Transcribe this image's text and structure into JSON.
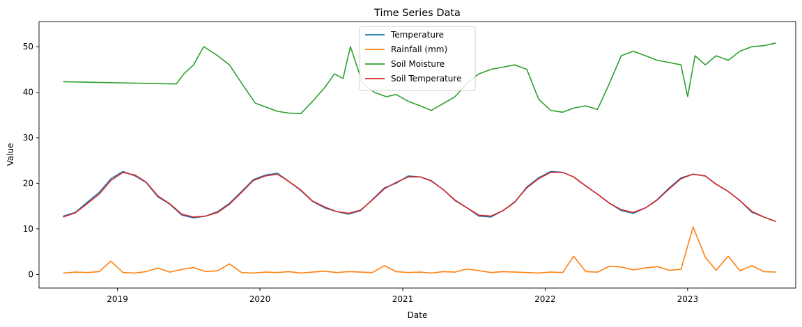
{
  "chart_data": {
    "type": "line",
    "title": "Time Series Data",
    "xlabel": "Date",
    "ylabel": "Value",
    "x_range": [
      "2018-06-14",
      "2023-10-05"
    ],
    "ylim": [
      -3.0,
      55.5
    ],
    "x_ticks": [
      "2019",
      "2020",
      "2021",
      "2022",
      "2023"
    ],
    "y_ticks": [
      0,
      10,
      20,
      30,
      40,
      50
    ],
    "grid": false,
    "legend": {
      "placement": "top-center",
      "entries": [
        "Temperature",
        "Rainfall (mm)",
        "Soil Moisture",
        "Soil Temperature"
      ]
    },
    "colors": {
      "Temperature": "#1f77b4",
      "Rainfall (mm)": "#ff7f0e",
      "Soil Moisture": "#2ca02c",
      "Soil Temperature": "#d62728"
    },
    "series": [
      {
        "name": "Temperature",
        "points": [
          [
            "2018-08-15",
            12.8
          ],
          [
            "2018-09-15",
            13.6
          ],
          [
            "2018-10-15",
            15.8
          ],
          [
            "2018-11-15",
            18.0
          ],
          [
            "2018-12-15",
            21.0
          ],
          [
            "2019-01-15",
            22.6
          ],
          [
            "2019-02-15",
            21.6
          ],
          [
            "2019-03-15",
            20.2
          ],
          [
            "2019-04-15",
            17.0
          ],
          [
            "2019-05-15",
            15.4
          ],
          [
            "2019-06-15",
            13.0
          ],
          [
            "2019-07-15",
            12.4
          ],
          [
            "2019-08-15",
            12.8
          ],
          [
            "2019-09-15",
            13.8
          ],
          [
            "2019-10-15",
            15.6
          ],
          [
            "2019-11-15",
            18.2
          ],
          [
            "2019-12-15",
            20.8
          ],
          [
            "2020-01-15",
            21.8
          ],
          [
            "2020-02-15",
            22.2
          ],
          [
            "2020-03-15",
            20.4
          ],
          [
            "2020-04-15",
            18.4
          ],
          [
            "2020-05-15",
            16.0
          ],
          [
            "2020-06-15",
            14.6
          ],
          [
            "2020-07-15",
            13.8
          ],
          [
            "2020-08-15",
            13.2
          ],
          [
            "2020-09-15",
            14.0
          ],
          [
            "2020-10-15",
            16.4
          ],
          [
            "2020-11-15",
            19.0
          ],
          [
            "2020-12-15",
            20.0
          ],
          [
            "2021-01-15",
            21.6
          ],
          [
            "2021-02-15",
            21.4
          ],
          [
            "2021-03-15",
            20.6
          ],
          [
            "2021-04-15",
            18.6
          ],
          [
            "2021-05-15",
            16.2
          ],
          [
            "2021-06-15",
            14.6
          ],
          [
            "2021-07-15",
            12.8
          ],
          [
            "2021-08-15",
            12.6
          ],
          [
            "2021-09-15",
            14.0
          ],
          [
            "2021-10-15",
            15.8
          ],
          [
            "2021-11-15",
            19.2
          ],
          [
            "2021-12-15",
            21.2
          ],
          [
            "2022-01-15",
            22.6
          ],
          [
            "2022-02-15",
            22.4
          ],
          [
            "2022-03-15",
            21.4
          ],
          [
            "2022-04-15",
            19.4
          ],
          [
            "2022-05-15",
            17.6
          ],
          [
            "2022-06-15",
            15.6
          ],
          [
            "2022-07-15",
            14.0
          ],
          [
            "2022-08-15",
            13.4
          ],
          [
            "2022-09-15",
            14.6
          ],
          [
            "2022-10-15",
            16.4
          ],
          [
            "2022-11-15",
            19.0
          ],
          [
            "2022-12-15",
            21.2
          ],
          [
            "2023-01-15",
            22.0
          ],
          [
            "2023-02-15",
            21.6
          ],
          [
            "2023-03-15",
            19.8
          ],
          [
            "2023-04-15",
            18.2
          ],
          [
            "2023-05-15",
            16.2
          ],
          [
            "2023-06-15",
            13.6
          ],
          [
            "2023-07-15",
            12.6
          ],
          [
            "2023-08-15",
            11.6
          ]
        ]
      },
      {
        "name": "Rainfall (mm)",
        "points": [
          [
            "2018-08-15",
            0.3
          ],
          [
            "2018-09-15",
            0.5
          ],
          [
            "2018-10-15",
            0.4
          ],
          [
            "2018-11-15",
            0.6
          ],
          [
            "2018-12-15",
            2.9
          ],
          [
            "2019-01-15",
            0.4
          ],
          [
            "2019-02-15",
            0.3
          ],
          [
            "2019-03-15",
            0.6
          ],
          [
            "2019-04-15",
            1.4
          ],
          [
            "2019-05-15",
            0.5
          ],
          [
            "2019-06-15",
            1.1
          ],
          [
            "2019-07-15",
            1.5
          ],
          [
            "2019-08-15",
            0.6
          ],
          [
            "2019-09-15",
            0.8
          ],
          [
            "2019-10-15",
            2.3
          ],
          [
            "2019-11-15",
            0.4
          ],
          [
            "2019-12-15",
            0.3
          ],
          [
            "2020-01-15",
            0.5
          ],
          [
            "2020-02-15",
            0.4
          ],
          [
            "2020-03-15",
            0.6
          ],
          [
            "2020-04-15",
            0.3
          ],
          [
            "2020-05-15",
            0.5
          ],
          [
            "2020-06-15",
            0.7
          ],
          [
            "2020-07-15",
            0.4
          ],
          [
            "2020-08-15",
            0.6
          ],
          [
            "2020-09-15",
            0.5
          ],
          [
            "2020-10-15",
            0.4
          ],
          [
            "2020-11-15",
            1.9
          ],
          [
            "2020-12-15",
            0.6
          ],
          [
            "2021-01-15",
            0.4
          ],
          [
            "2021-02-15",
            0.5
          ],
          [
            "2021-03-15",
            0.3
          ],
          [
            "2021-04-15",
            0.6
          ],
          [
            "2021-05-15",
            0.5
          ],
          [
            "2021-06-15",
            1.2
          ],
          [
            "2021-07-15",
            0.8
          ],
          [
            "2021-08-15",
            0.4
          ],
          [
            "2021-09-15",
            0.6
          ],
          [
            "2021-10-15",
            0.5
          ],
          [
            "2021-11-15",
            0.4
          ],
          [
            "2021-12-15",
            0.3
          ],
          [
            "2022-01-15",
            0.5
          ],
          [
            "2022-02-15",
            0.4
          ],
          [
            "2022-03-15",
            4.0
          ],
          [
            "2022-04-15",
            0.6
          ],
          [
            "2022-05-15",
            0.5
          ],
          [
            "2022-06-15",
            1.8
          ],
          [
            "2022-07-15",
            1.6
          ],
          [
            "2022-08-15",
            1.0
          ],
          [
            "2022-09-15",
            1.4
          ],
          [
            "2022-10-15",
            1.7
          ],
          [
            "2022-11-15",
            0.9
          ],
          [
            "2022-12-15",
            1.1
          ],
          [
            "2023-01-15",
            10.4
          ],
          [
            "2023-02-15",
            3.8
          ],
          [
            "2023-03-15",
            0.9
          ],
          [
            "2023-04-15",
            4.0
          ],
          [
            "2023-05-15",
            0.8
          ],
          [
            "2023-06-15",
            1.9
          ],
          [
            "2023-07-15",
            0.6
          ],
          [
            "2023-08-15",
            0.5
          ]
        ]
      },
      {
        "name": "Soil Moisture",
        "points": [
          [
            "2018-08-15",
            42.3
          ],
          [
            "2019-06-01",
            41.8
          ],
          [
            "2019-06-20",
            44.0
          ],
          [
            "2019-07-15",
            46.0
          ],
          [
            "2019-08-10",
            50.0
          ],
          [
            "2019-09-15",
            48.0
          ],
          [
            "2019-10-15",
            46.0
          ],
          [
            "2019-11-15",
            42.0
          ],
          [
            "2019-12-20",
            37.6
          ],
          [
            "2020-02-15",
            35.8
          ],
          [
            "2020-03-15",
            35.4
          ],
          [
            "2020-04-15",
            35.3
          ],
          [
            "2020-05-15",
            38.0
          ],
          [
            "2020-06-15",
            41.0
          ],
          [
            "2020-07-10",
            44.0
          ],
          [
            "2020-08-01",
            43.0
          ],
          [
            "2020-08-20",
            50.0
          ],
          [
            "2020-09-20",
            42.0
          ],
          [
            "2020-10-20",
            40.0
          ],
          [
            "2020-11-20",
            39.0
          ],
          [
            "2020-12-15",
            39.5
          ],
          [
            "2021-01-15",
            38.0
          ],
          [
            "2021-02-15",
            37.0
          ],
          [
            "2021-03-15",
            36.0
          ],
          [
            "2021-04-15",
            37.5
          ],
          [
            "2021-05-15",
            39.0
          ],
          [
            "2021-06-15",
            42.0
          ],
          [
            "2021-07-15",
            44.0
          ],
          [
            "2021-08-15",
            45.0
          ],
          [
            "2021-09-15",
            45.5
          ],
          [
            "2021-10-15",
            46.0
          ],
          [
            "2021-11-15",
            45.0
          ],
          [
            "2021-12-15",
            38.5
          ],
          [
            "2022-01-15",
            36.0
          ],
          [
            "2022-02-15",
            35.6
          ],
          [
            "2022-03-15",
            36.5
          ],
          [
            "2022-04-15",
            37.0
          ],
          [
            "2022-05-15",
            36.2
          ],
          [
            "2022-06-15",
            42.0
          ],
          [
            "2022-07-15",
            48.0
          ],
          [
            "2022-08-15",
            49.0
          ],
          [
            "2022-09-15",
            48.0
          ],
          [
            "2022-10-15",
            47.0
          ],
          [
            "2022-11-15",
            46.5
          ],
          [
            "2022-12-15",
            46.0
          ],
          [
            "2023-01-01",
            39.0
          ],
          [
            "2023-01-20",
            48.0
          ],
          [
            "2023-02-15",
            46.0
          ],
          [
            "2023-03-15",
            48.0
          ],
          [
            "2023-04-15",
            47.0
          ],
          [
            "2023-05-15",
            49.0
          ],
          [
            "2023-06-15",
            50.0
          ],
          [
            "2023-07-15",
            50.2
          ],
          [
            "2023-08-15",
            50.8
          ]
        ]
      },
      {
        "name": "Soil Temperature",
        "points": [
          [
            "2018-08-15",
            12.6
          ],
          [
            "2018-09-15",
            13.5
          ],
          [
            "2018-10-15",
            15.5
          ],
          [
            "2018-11-15",
            17.6
          ],
          [
            "2018-12-15",
            20.6
          ],
          [
            "2019-01-15",
            22.4
          ],
          [
            "2019-02-15",
            21.8
          ],
          [
            "2019-03-15",
            20.3
          ],
          [
            "2019-04-15",
            17.2
          ],
          [
            "2019-05-15",
            15.5
          ],
          [
            "2019-06-15",
            13.2
          ],
          [
            "2019-07-15",
            12.6
          ],
          [
            "2019-08-15",
            12.8
          ],
          [
            "2019-09-15",
            13.6
          ],
          [
            "2019-10-15",
            15.4
          ],
          [
            "2019-11-15",
            18.0
          ],
          [
            "2019-12-15",
            20.6
          ],
          [
            "2020-01-15",
            21.6
          ],
          [
            "2020-02-15",
            22.0
          ],
          [
            "2020-03-15",
            20.4
          ],
          [
            "2020-04-15",
            18.5
          ],
          [
            "2020-05-15",
            16.1
          ],
          [
            "2020-06-15",
            14.8
          ],
          [
            "2020-07-15",
            13.8
          ],
          [
            "2020-08-15",
            13.4
          ],
          [
            "2020-09-15",
            14.1
          ],
          [
            "2020-10-15",
            16.3
          ],
          [
            "2020-11-15",
            18.8
          ],
          [
            "2020-12-15",
            20.2
          ],
          [
            "2021-01-15",
            21.4
          ],
          [
            "2021-02-15",
            21.4
          ],
          [
            "2021-03-15",
            20.5
          ],
          [
            "2021-04-15",
            18.6
          ],
          [
            "2021-05-15",
            16.3
          ],
          [
            "2021-06-15",
            14.6
          ],
          [
            "2021-07-15",
            13.0
          ],
          [
            "2021-08-15",
            12.8
          ],
          [
            "2021-09-15",
            14.0
          ],
          [
            "2021-10-15",
            15.9
          ],
          [
            "2021-11-15",
            19.0
          ],
          [
            "2021-12-15",
            21.0
          ],
          [
            "2022-01-15",
            22.4
          ],
          [
            "2022-02-15",
            22.4
          ],
          [
            "2022-03-15",
            21.4
          ],
          [
            "2022-04-15",
            19.4
          ],
          [
            "2022-05-15",
            17.6
          ],
          [
            "2022-06-15",
            15.6
          ],
          [
            "2022-07-15",
            14.2
          ],
          [
            "2022-08-15",
            13.6
          ],
          [
            "2022-09-15",
            14.6
          ],
          [
            "2022-10-15",
            16.3
          ],
          [
            "2022-11-15",
            18.8
          ],
          [
            "2022-12-15",
            21.0
          ],
          [
            "2023-01-15",
            22.0
          ],
          [
            "2023-02-15",
            21.6
          ],
          [
            "2023-03-15",
            19.8
          ],
          [
            "2023-04-15",
            18.2
          ],
          [
            "2023-05-15",
            16.2
          ],
          [
            "2023-06-15",
            13.8
          ],
          [
            "2023-07-15",
            12.6
          ],
          [
            "2023-08-15",
            11.6
          ]
        ]
      }
    ]
  }
}
